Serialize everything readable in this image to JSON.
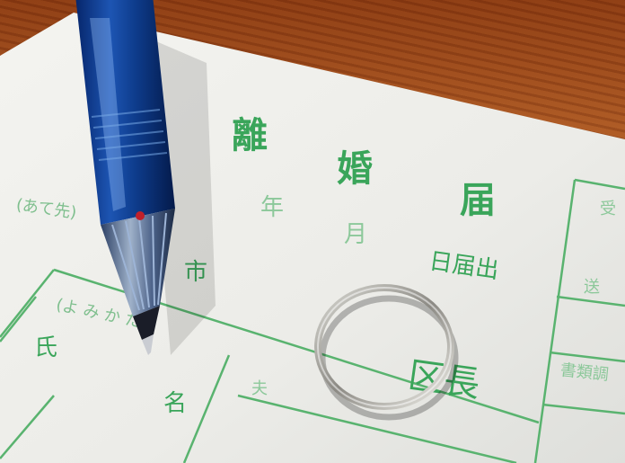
{
  "form": {
    "title_chars": [
      "離",
      "婚",
      "届"
    ],
    "addressee": "(あて先)",
    "date_year": "年",
    "date_month": "月",
    "date_submitted": "日届出",
    "city_suffix": "市",
    "ward_head": "区長",
    "furigana": "(よ み か た)",
    "surname": "氏",
    "given_name": "名",
    "husband": "夫",
    "receipt": "受",
    "delivery": "送",
    "document_survey": "書類調"
  }
}
